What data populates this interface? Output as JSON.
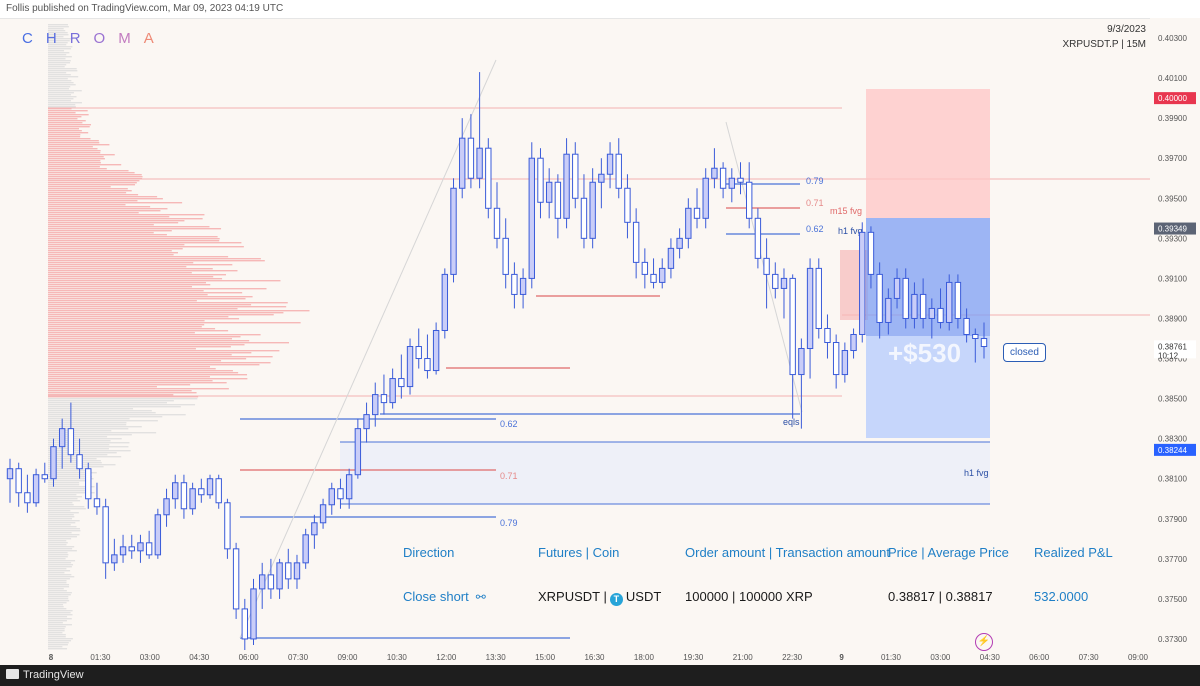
{
  "header": {
    "publish_text": "Follis published on TradingView.com, Mar 09, 2023 04:19 UTC",
    "brand_letters": [
      "C",
      "H",
      "R",
      "O",
      "M",
      "A"
    ],
    "brand_colors": [
      "#4a6fe3",
      "#5b6fe0",
      "#7a70da",
      "#9a72d2",
      "#c27bc0",
      "#ee8a76"
    ],
    "date": "9/3/2023",
    "symbol": "XRPUSDT.P | 15M"
  },
  "footer": {
    "logo_text": "TradingView"
  },
  "position": {
    "pnl_overlay": "+$530",
    "closed_label": "closed",
    "take_profit_tag": "0.40000",
    "entry_tag": "0.39349",
    "current_tag": "0.38761",
    "countdown_tag": "10:12",
    "stop_tag": "0.38244"
  },
  "trade_table": {
    "headers": [
      "Direction",
      "Futures | Coin",
      "Order amount | Transaction amount",
      "Price | Average Price",
      "Realized P&L"
    ],
    "direction": "Close short",
    "pair": "XRPUSDT",
    "coin": "USDT",
    "amounts": "100000 | 100000 XRP",
    "prices": "0.38817 | 0.38817",
    "pnl": "532.0000"
  },
  "colors": {
    "bull": "#c9cdf8",
    "border": "#3a5bd9",
    "fib_blue": "#4a72d8",
    "fib_red": "#e06a6a",
    "tp_zone": "#ffc6c6",
    "sl_zone": "#7e9ff4"
  },
  "chart_data": {
    "type": "candlestick",
    "title": "",
    "ylim": [
      0.372,
      0.404
    ],
    "y_ticks": [
      "0.40300",
      "0.40100",
      "0.39900",
      "0.39700",
      "0.39500",
      "0.39300",
      "0.39100",
      "0.38900",
      "0.38700",
      "0.38500",
      "0.38300",
      "0.38100",
      "0.37900",
      "0.37700",
      "0.37500",
      "0.37300"
    ],
    "x_ticks": [
      "8",
      "01:30",
      "03:00",
      "04:30",
      "06:00",
      "07:30",
      "09:00",
      "10:30",
      "12:00",
      "13:30",
      "15:00",
      "16:30",
      "18:00",
      "19:30",
      "21:00",
      "22:30",
      "9",
      "01:30",
      "03:00",
      "04:30",
      "06:00",
      "07:30",
      "09:00"
    ],
    "labels": {
      "fib_079": "0.79",
      "fib_071": "0.71",
      "fib_062": "0.62",
      "m15_fvg": "m15 fvg",
      "h1_fvg": "h1 fvg",
      "eqls": "eqls"
    },
    "candles": [
      {
        "o": 0.381,
        "h": 0.382,
        "l": 0.3798,
        "c": 0.3815
      },
      {
        "o": 0.3815,
        "h": 0.3818,
        "l": 0.3796,
        "c": 0.3803
      },
      {
        "o": 0.3803,
        "h": 0.3812,
        "l": 0.3793,
        "c": 0.3798
      },
      {
        "o": 0.3798,
        "h": 0.3815,
        "l": 0.3796,
        "c": 0.3812
      },
      {
        "o": 0.3812,
        "h": 0.3818,
        "l": 0.3808,
        "c": 0.381
      },
      {
        "o": 0.381,
        "h": 0.383,
        "l": 0.3806,
        "c": 0.3826
      },
      {
        "o": 0.3826,
        "h": 0.384,
        "l": 0.3815,
        "c": 0.3835
      },
      {
        "o": 0.3835,
        "h": 0.3848,
        "l": 0.3818,
        "c": 0.3822
      },
      {
        "o": 0.3822,
        "h": 0.383,
        "l": 0.381,
        "c": 0.3815
      },
      {
        "o": 0.3815,
        "h": 0.3818,
        "l": 0.3795,
        "c": 0.38
      },
      {
        "o": 0.38,
        "h": 0.3808,
        "l": 0.3792,
        "c": 0.3796
      },
      {
        "o": 0.3796,
        "h": 0.38,
        "l": 0.376,
        "c": 0.3768
      },
      {
        "o": 0.3768,
        "h": 0.378,
        "l": 0.3764,
        "c": 0.3772
      },
      {
        "o": 0.3772,
        "h": 0.3782,
        "l": 0.3768,
        "c": 0.3776
      },
      {
        "o": 0.3776,
        "h": 0.3782,
        "l": 0.377,
        "c": 0.3774
      },
      {
        "o": 0.3774,
        "h": 0.3782,
        "l": 0.3768,
        "c": 0.3778
      },
      {
        "o": 0.3778,
        "h": 0.3784,
        "l": 0.377,
        "c": 0.3772
      },
      {
        "o": 0.3772,
        "h": 0.3795,
        "l": 0.377,
        "c": 0.3792
      },
      {
        "o": 0.3792,
        "h": 0.3805,
        "l": 0.3786,
        "c": 0.38
      },
      {
        "o": 0.38,
        "h": 0.3812,
        "l": 0.3795,
        "c": 0.3808
      },
      {
        "o": 0.3808,
        "h": 0.3812,
        "l": 0.379,
        "c": 0.3795
      },
      {
        "o": 0.3795,
        "h": 0.3808,
        "l": 0.3792,
        "c": 0.3805
      },
      {
        "o": 0.3805,
        "h": 0.381,
        "l": 0.3798,
        "c": 0.3802
      },
      {
        "o": 0.3802,
        "h": 0.3812,
        "l": 0.38,
        "c": 0.381
      },
      {
        "o": 0.381,
        "h": 0.3812,
        "l": 0.3795,
        "c": 0.3798
      },
      {
        "o": 0.3798,
        "h": 0.38,
        "l": 0.377,
        "c": 0.3775
      },
      {
        "o": 0.3775,
        "h": 0.3778,
        "l": 0.374,
        "c": 0.3745
      },
      {
        "o": 0.3745,
        "h": 0.375,
        "l": 0.3723,
        "c": 0.373
      },
      {
        "o": 0.373,
        "h": 0.376,
        "l": 0.3727,
        "c": 0.3755
      },
      {
        "o": 0.3755,
        "h": 0.3768,
        "l": 0.3745,
        "c": 0.3762
      },
      {
        "o": 0.3762,
        "h": 0.377,
        "l": 0.375,
        "c": 0.3755
      },
      {
        "o": 0.3755,
        "h": 0.377,
        "l": 0.375,
        "c": 0.3768
      },
      {
        "o": 0.3768,
        "h": 0.3775,
        "l": 0.3755,
        "c": 0.376
      },
      {
        "o": 0.376,
        "h": 0.3772,
        "l": 0.3755,
        "c": 0.3768
      },
      {
        "o": 0.3768,
        "h": 0.3785,
        "l": 0.3765,
        "c": 0.3782
      },
      {
        "o": 0.3782,
        "h": 0.3792,
        "l": 0.3775,
        "c": 0.3788
      },
      {
        "o": 0.3788,
        "h": 0.38,
        "l": 0.3785,
        "c": 0.3797
      },
      {
        "o": 0.3797,
        "h": 0.3808,
        "l": 0.3792,
        "c": 0.3805
      },
      {
        "o": 0.3805,
        "h": 0.381,
        "l": 0.3795,
        "c": 0.38
      },
      {
        "o": 0.38,
        "h": 0.3815,
        "l": 0.3795,
        "c": 0.3812
      },
      {
        "o": 0.3812,
        "h": 0.384,
        "l": 0.381,
        "c": 0.3835
      },
      {
        "o": 0.3835,
        "h": 0.3848,
        "l": 0.3828,
        "c": 0.3842
      },
      {
        "o": 0.3842,
        "h": 0.3858,
        "l": 0.3836,
        "c": 0.3852
      },
      {
        "o": 0.3852,
        "h": 0.3862,
        "l": 0.3842,
        "c": 0.3848
      },
      {
        "o": 0.3848,
        "h": 0.3865,
        "l": 0.3845,
        "c": 0.386
      },
      {
        "o": 0.386,
        "h": 0.3872,
        "l": 0.385,
        "c": 0.3856
      },
      {
        "o": 0.3856,
        "h": 0.388,
        "l": 0.3852,
        "c": 0.3876
      },
      {
        "o": 0.3876,
        "h": 0.3885,
        "l": 0.3865,
        "c": 0.387
      },
      {
        "o": 0.387,
        "h": 0.3882,
        "l": 0.386,
        "c": 0.3864
      },
      {
        "o": 0.3864,
        "h": 0.3888,
        "l": 0.3862,
        "c": 0.3884
      },
      {
        "o": 0.3884,
        "h": 0.3915,
        "l": 0.388,
        "c": 0.3912
      },
      {
        "o": 0.3912,
        "h": 0.396,
        "l": 0.3908,
        "c": 0.3955
      },
      {
        "o": 0.3955,
        "h": 0.399,
        "l": 0.395,
        "c": 0.398
      },
      {
        "o": 0.398,
        "h": 0.3992,
        "l": 0.3955,
        "c": 0.396
      },
      {
        "o": 0.396,
        "h": 0.4013,
        "l": 0.3955,
        "c": 0.3975
      },
      {
        "o": 0.3975,
        "h": 0.398,
        "l": 0.394,
        "c": 0.3945
      },
      {
        "o": 0.3945,
        "h": 0.3958,
        "l": 0.3925,
        "c": 0.393
      },
      {
        "o": 0.393,
        "h": 0.394,
        "l": 0.3905,
        "c": 0.3912
      },
      {
        "o": 0.3912,
        "h": 0.3918,
        "l": 0.3895,
        "c": 0.3902
      },
      {
        "o": 0.3902,
        "h": 0.3915,
        "l": 0.3895,
        "c": 0.391
      },
      {
        "o": 0.391,
        "h": 0.3978,
        "l": 0.3905,
        "c": 0.397
      },
      {
        "o": 0.397,
        "h": 0.3975,
        "l": 0.394,
        "c": 0.3948
      },
      {
        "o": 0.3948,
        "h": 0.3965,
        "l": 0.394,
        "c": 0.3958
      },
      {
        "o": 0.3958,
        "h": 0.3962,
        "l": 0.393,
        "c": 0.394
      },
      {
        "o": 0.394,
        "h": 0.398,
        "l": 0.3935,
        "c": 0.3972
      },
      {
        "o": 0.3972,
        "h": 0.3978,
        "l": 0.3945,
        "c": 0.395
      },
      {
        "o": 0.395,
        "h": 0.3962,
        "l": 0.3925,
        "c": 0.393
      },
      {
        "o": 0.393,
        "h": 0.3965,
        "l": 0.3925,
        "c": 0.3958
      },
      {
        "o": 0.3958,
        "h": 0.397,
        "l": 0.3945,
        "c": 0.3962
      },
      {
        "o": 0.3962,
        "h": 0.3978,
        "l": 0.3955,
        "c": 0.3972
      },
      {
        "o": 0.3972,
        "h": 0.398,
        "l": 0.395,
        "c": 0.3955
      },
      {
        "o": 0.3955,
        "h": 0.3962,
        "l": 0.393,
        "c": 0.3938
      },
      {
        "o": 0.3938,
        "h": 0.3945,
        "l": 0.391,
        "c": 0.3918
      },
      {
        "o": 0.3918,
        "h": 0.3925,
        "l": 0.3905,
        "c": 0.3912
      },
      {
        "o": 0.3912,
        "h": 0.392,
        "l": 0.3905,
        "c": 0.3908
      },
      {
        "o": 0.3908,
        "h": 0.392,
        "l": 0.3905,
        "c": 0.3915
      },
      {
        "o": 0.3915,
        "h": 0.393,
        "l": 0.391,
        "c": 0.3925
      },
      {
        "o": 0.3925,
        "h": 0.3935,
        "l": 0.392,
        "c": 0.393
      },
      {
        "o": 0.393,
        "h": 0.395,
        "l": 0.3925,
        "c": 0.3945
      },
      {
        "o": 0.3945,
        "h": 0.3955,
        "l": 0.3935,
        "c": 0.394
      },
      {
        "o": 0.394,
        "h": 0.3965,
        "l": 0.3935,
        "c": 0.396
      },
      {
        "o": 0.396,
        "h": 0.3975,
        "l": 0.3955,
        "c": 0.3965
      },
      {
        "o": 0.3965,
        "h": 0.3968,
        "l": 0.395,
        "c": 0.3955
      },
      {
        "o": 0.3955,
        "h": 0.3965,
        "l": 0.3948,
        "c": 0.396
      },
      {
        "o": 0.396,
        "h": 0.3968,
        "l": 0.3952,
        "c": 0.3958
      },
      {
        "o": 0.3958,
        "h": 0.3968,
        "l": 0.3935,
        "c": 0.394
      },
      {
        "o": 0.394,
        "h": 0.3945,
        "l": 0.3915,
        "c": 0.392
      },
      {
        "o": 0.392,
        "h": 0.393,
        "l": 0.3895,
        "c": 0.3912
      },
      {
        "o": 0.3912,
        "h": 0.3918,
        "l": 0.39,
        "c": 0.3905
      },
      {
        "o": 0.3905,
        "h": 0.3915,
        "l": 0.389,
        "c": 0.391
      },
      {
        "o": 0.391,
        "h": 0.3912,
        "l": 0.384,
        "c": 0.3862
      },
      {
        "o": 0.3862,
        "h": 0.388,
        "l": 0.3835,
        "c": 0.3875
      },
      {
        "o": 0.3875,
        "h": 0.392,
        "l": 0.386,
        "c": 0.3915
      },
      {
        "o": 0.3915,
        "h": 0.392,
        "l": 0.388,
        "c": 0.3885
      },
      {
        "o": 0.3885,
        "h": 0.3892,
        "l": 0.387,
        "c": 0.3878
      },
      {
        "o": 0.3878,
        "h": 0.3882,
        "l": 0.3855,
        "c": 0.3862
      },
      {
        "o": 0.3862,
        "h": 0.3878,
        "l": 0.3858,
        "c": 0.3874
      },
      {
        "o": 0.3874,
        "h": 0.3885,
        "l": 0.387,
        "c": 0.3882
      },
      {
        "o": 0.3882,
        "h": 0.3938,
        "l": 0.3878,
        "c": 0.3933
      },
      {
        "o": 0.3933,
        "h": 0.3936,
        "l": 0.3905,
        "c": 0.3912
      },
      {
        "o": 0.3912,
        "h": 0.3918,
        "l": 0.388,
        "c": 0.3888
      },
      {
        "o": 0.3888,
        "h": 0.3905,
        "l": 0.3882,
        "c": 0.39
      },
      {
        "o": 0.39,
        "h": 0.3915,
        "l": 0.3895,
        "c": 0.391
      },
      {
        "o": 0.391,
        "h": 0.3915,
        "l": 0.3885,
        "c": 0.389
      },
      {
        "o": 0.389,
        "h": 0.3908,
        "l": 0.3885,
        "c": 0.3902
      },
      {
        "o": 0.3902,
        "h": 0.391,
        "l": 0.3885,
        "c": 0.389
      },
      {
        "o": 0.389,
        "h": 0.39,
        "l": 0.388,
        "c": 0.3895
      },
      {
        "o": 0.3895,
        "h": 0.3905,
        "l": 0.3885,
        "c": 0.3888
      },
      {
        "o": 0.3888,
        "h": 0.3912,
        "l": 0.3884,
        "c": 0.3908
      },
      {
        "o": 0.3908,
        "h": 0.3912,
        "l": 0.3885,
        "c": 0.389
      },
      {
        "o": 0.389,
        "h": 0.3895,
        "l": 0.3878,
        "c": 0.3882
      },
      {
        "o": 0.3882,
        "h": 0.3885,
        "l": 0.3868,
        "c": 0.388
      },
      {
        "o": 0.388,
        "h": 0.3888,
        "l": 0.387,
        "c": 0.3876
      }
    ]
  }
}
